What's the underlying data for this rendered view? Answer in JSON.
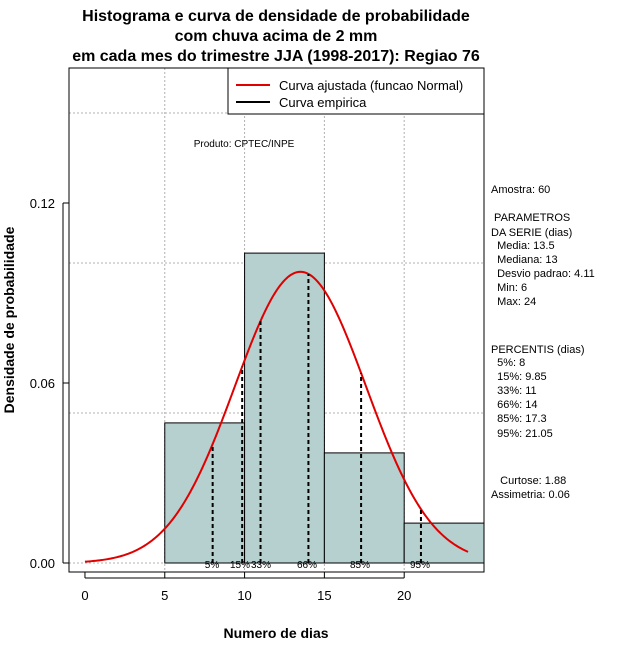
{
  "chart_data": {
    "type": "histogram",
    "title_lines": [
      "Histograma e curva de densidade de probabilidade",
      "com chuva acima de 2 mm",
      "em cada mes do trimestre JJA (1998-2017): Regiao 76"
    ],
    "xlabel": "Numero de dias",
    "ylabel": "Densidade de probabilidade",
    "xlim": [
      -1,
      25
    ],
    "ylim": [
      -0.003,
      0.165
    ],
    "x_ticks": [
      0,
      5,
      10,
      15,
      20
    ],
    "y_ticks": [
      0.0,
      0.06,
      0.12
    ],
    "y_tick_labels": [
      "0.00",
      "0.06",
      "0.12"
    ],
    "x_gridlines": [
      5,
      10,
      15,
      20
    ],
    "y_gridlines": [
      0,
      0.05,
      0.1,
      0.15
    ],
    "bins": [
      {
        "start": 5,
        "end": 10,
        "density": 0.0467
      },
      {
        "start": 10,
        "end": 15,
        "density": 0.1033
      },
      {
        "start": 15,
        "end": 20,
        "density": 0.0367
      },
      {
        "start": 20,
        "end": 25,
        "density": 0.0133
      }
    ],
    "bar_color": "#b6cfcf",
    "normal_curve": {
      "mean": 13.5,
      "sd": 4.11,
      "x_range": [
        0,
        24
      ],
      "color": "#e00000"
    },
    "percentiles": [
      {
        "label": "5%",
        "value": 8
      },
      {
        "label": "15%",
        "value": 9.85
      },
      {
        "label": "33%",
        "value": 11
      },
      {
        "label": "66%",
        "value": 14
      },
      {
        "label": "85%",
        "value": 17.3
      },
      {
        "label": "95%",
        "value": 21.05
      }
    ],
    "legend": [
      {
        "label": "Curva ajustada (funcao Normal)",
        "color": "#e00000"
      },
      {
        "label": "Curva empirica",
        "color": "#000000"
      }
    ],
    "product_label": "Produto: CPTEC/INPE",
    "stats_lines": [
      "Amostra: 60",
      " PARAMETROS",
      "DA SERIE (dias)",
      "  Media: 13.5",
      "  Mediana: 13",
      "  Desvio padrao: 4.11",
      "  Min: 6",
      "  Max: 24",
      "PERCENTIS (dias)",
      "  5%: 8",
      "  15%: 9.85",
      "  33%: 11",
      "  66%: 14",
      "  85%: 17.3",
      "  95%: 21.05",
      "   Curtose: 1.88",
      "Assimetria: 0.06"
    ]
  }
}
